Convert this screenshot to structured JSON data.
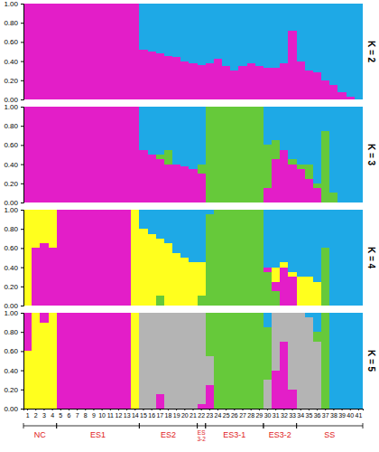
{
  "chart_data": [
    {
      "type": "bar",
      "stacked": true,
      "title": "K = 2",
      "tick_labels": "y",
      "categories": [
        "1",
        "2",
        "3",
        "4",
        "5",
        "6",
        "7",
        "8",
        "9",
        "10",
        "11",
        "12",
        "13",
        "14",
        "15",
        "16",
        "17",
        "18",
        "19",
        "20",
        "21",
        "22",
        "23",
        "24",
        "25",
        "26",
        "27",
        "28",
        "29",
        "30",
        "31",
        "32",
        "33",
        "34",
        "35",
        "36",
        "37",
        "38",
        "39",
        "40",
        "41"
      ],
      "ylim": [
        0,
        1
      ],
      "yticks": [
        {
          "value": 0,
          "label": "0.00"
        },
        {
          "value": 0.2,
          "label": "0.20"
        },
        {
          "value": 0.4,
          "label": "0.40"
        },
        {
          "value": 0.6,
          "label": "0.60"
        },
        {
          "value": 0.8,
          "label": "0.80"
        },
        {
          "value": 1,
          "label": "1.00"
        }
      ],
      "series": [
        {
          "color": "#e31ec8",
          "values": [
            1,
            1,
            1,
            1,
            1,
            1,
            1,
            1,
            1,
            1,
            1,
            1,
            1,
            1,
            0.52,
            0.5,
            0.48,
            0.45,
            0.44,
            0.4,
            0.38,
            0.36,
            0.38,
            0.42,
            0.35,
            0.3,
            0.35,
            0.38,
            0.35,
            0.33,
            0.33,
            0.38,
            0.72,
            0.4,
            0.3,
            0.28,
            0.2,
            0.15,
            0.08,
            0.03,
            0
          ]
        },
        {
          "color": "#1ea9e6",
          "values": [
            0,
            0,
            0,
            0,
            0,
            0,
            0,
            0,
            0,
            0,
            0,
            0,
            0,
            0,
            0.48,
            0.5,
            0.52,
            0.55,
            0.56,
            0.6,
            0.62,
            0.64,
            0.62,
            0.58,
            0.65,
            0.7,
            0.65,
            0.62,
            0.65,
            0.67,
            0.67,
            0.62,
            0.28,
            0.6,
            0.7,
            0.72,
            0.8,
            0.85,
            0.92,
            0.97,
            1
          ]
        }
      ]
    },
    {
      "type": "bar",
      "stacked": true,
      "title": "K = 3",
      "tick_labels": "y",
      "categories": [
        "1",
        "2",
        "3",
        "4",
        "5",
        "6",
        "7",
        "8",
        "9",
        "10",
        "11",
        "12",
        "13",
        "14",
        "15",
        "16",
        "17",
        "18",
        "19",
        "20",
        "21",
        "22",
        "23",
        "24",
        "25",
        "26",
        "27",
        "28",
        "29",
        "30",
        "31",
        "32",
        "33",
        "34",
        "35",
        "36",
        "37",
        "38",
        "39",
        "40",
        "41"
      ],
      "ylim": [
        0,
        1
      ],
      "yticks": [
        {
          "value": 0,
          "label": "0.00"
        },
        {
          "value": 0.2,
          "label": "0.20"
        },
        {
          "value": 0.4,
          "label": "0.40"
        },
        {
          "value": 0.6,
          "label": "0.60"
        },
        {
          "value": 0.8,
          "label": "0.80"
        },
        {
          "value": 1,
          "label": "1.00"
        }
      ],
      "series": [
        {
          "color": "#e31ec8",
          "values": [
            1,
            1,
            1,
            1,
            1,
            1,
            1,
            1,
            1,
            1,
            1,
            1,
            1,
            1,
            0.55,
            0.5,
            0.45,
            0.4,
            0.4,
            0.38,
            0.35,
            0.3,
            0,
            0,
            0,
            0,
            0,
            0,
            0,
            0.15,
            0.45,
            0.55,
            0.4,
            0.35,
            0.25,
            0.15,
            0,
            0,
            0,
            0,
            0
          ]
        },
        {
          "color": "#66c93a",
          "values": [
            0,
            0,
            0,
            0,
            0,
            0,
            0,
            0,
            0,
            0,
            0,
            0,
            0,
            0,
            0,
            0,
            0.05,
            0.15,
            0,
            0,
            0,
            0.1,
            1,
            1,
            1,
            1,
            1,
            1,
            1,
            0.45,
            0.2,
            0,
            0.05,
            0.05,
            0.15,
            0.05,
            0.75,
            0.1,
            0,
            0,
            0
          ]
        },
        {
          "color": "#1ea9e6",
          "values": [
            0,
            0,
            0,
            0,
            0,
            0,
            0,
            0,
            0,
            0,
            0,
            0,
            0,
            0,
            0.45,
            0.5,
            0.5,
            0.45,
            0.6,
            0.62,
            0.65,
            0.6,
            0,
            0,
            0,
            0,
            0,
            0,
            0,
            0.4,
            0.35,
            0.45,
            0.55,
            0.6,
            0.6,
            0.8,
            0.25,
            0.9,
            1,
            1,
            1
          ]
        }
      ]
    },
    {
      "type": "bar",
      "stacked": true,
      "title": "K = 4",
      "tick_labels": "y",
      "categories": [
        "1",
        "2",
        "3",
        "4",
        "5",
        "6",
        "7",
        "8",
        "9",
        "10",
        "11",
        "12",
        "13",
        "14",
        "15",
        "16",
        "17",
        "18",
        "19",
        "20",
        "21",
        "22",
        "23",
        "24",
        "25",
        "26",
        "27",
        "28",
        "29",
        "30",
        "31",
        "32",
        "33",
        "34",
        "35",
        "36",
        "37",
        "38",
        "39",
        "40",
        "41"
      ],
      "ylim": [
        0,
        1
      ],
      "yticks": [
        {
          "value": 0,
          "label": "0.00"
        },
        {
          "value": 0.2,
          "label": "0.20"
        },
        {
          "value": 0.4,
          "label": "0.40"
        },
        {
          "value": 0.6,
          "label": "0.60"
        },
        {
          "value": 0.8,
          "label": "0.80"
        },
        {
          "value": 1,
          "label": "1.00"
        }
      ],
      "series": [
        {
          "color": "#66c93a",
          "values": [
            0,
            0,
            0,
            0,
            0,
            0,
            0,
            0,
            0,
            0,
            0,
            0,
            0,
            0,
            0,
            0,
            0.1,
            0,
            0,
            0,
            0,
            0.1,
            0.95,
            1,
            1,
            1,
            1,
            1,
            1,
            0.35,
            0.15,
            0,
            0,
            0,
            0,
            0,
            0.6,
            0,
            0,
            0,
            0
          ]
        },
        {
          "color": "#e31ec8",
          "values": [
            0,
            0.6,
            0.65,
            0.6,
            1,
            1,
            1,
            1,
            1,
            1,
            1,
            1,
            1,
            0,
            0,
            0,
            0,
            0,
            0,
            0,
            0,
            0,
            0,
            0,
            0,
            0,
            0,
            0,
            0,
            0.05,
            0.1,
            0.4,
            0.3,
            0,
            0,
            0,
            0,
            0,
            0,
            0,
            0
          ]
        },
        {
          "color": "#ffff1e",
          "values": [
            1,
            0.4,
            0.35,
            0.4,
            0,
            0,
            0,
            0,
            0,
            0,
            0,
            0,
            0,
            1,
            0.8,
            0.75,
            0.6,
            0.65,
            0.55,
            0.5,
            0.45,
            0.35,
            0,
            0,
            0,
            0,
            0,
            0,
            0,
            0,
            0.15,
            0.05,
            0.05,
            0.3,
            0.3,
            0.25,
            0,
            0,
            0,
            0,
            0
          ]
        },
        {
          "color": "#1ea9e6",
          "values": [
            0,
            0,
            0,
            0,
            0,
            0,
            0,
            0,
            0,
            0,
            0,
            0,
            0,
            0,
            0.2,
            0.25,
            0.3,
            0.35,
            0.45,
            0.5,
            0.55,
            0.55,
            0.05,
            0,
            0,
            0,
            0,
            0,
            0,
            0.6,
            0.6,
            0.55,
            0.65,
            0.7,
            0.7,
            0.75,
            0.4,
            1,
            1,
            1,
            1
          ]
        }
      ]
    },
    {
      "type": "bar",
      "stacked": true,
      "title": "K = 5",
      "categories": [
        "1",
        "2",
        "3",
        "4",
        "5",
        "6",
        "7",
        "8",
        "9",
        "10",
        "11",
        "12",
        "13",
        "14",
        "15",
        "16",
        "17",
        "18",
        "19",
        "20",
        "21",
        "22",
        "23",
        "24",
        "25",
        "26",
        "27",
        "28",
        "29",
        "30",
        "31",
        "32",
        "33",
        "34",
        "35",
        "36",
        "37",
        "38",
        "39",
        "40",
        "41"
      ],
      "ylim": [
        0,
        1
      ],
      "yticks": [
        {
          "value": 0,
          "label": "0.00"
        },
        {
          "value": 0.2,
          "label": "0.20"
        },
        {
          "value": 0.4,
          "label": "0.40"
        },
        {
          "value": 0.6,
          "label": "0.60"
        },
        {
          "value": 0.8,
          "label": "0.80"
        },
        {
          "value": 1,
          "label": "1.00"
        }
      ],
      "series": [
        {
          "color": "#ffff1e",
          "values": [
            0.6,
            1,
            0.9,
            1,
            0,
            0,
            0,
            0,
            0,
            0,
            0,
            0,
            0,
            1,
            0,
            0,
            0,
            0,
            0,
            0,
            0,
            0,
            0,
            0,
            0,
            0,
            0,
            0,
            0,
            0,
            0,
            0,
            0,
            0,
            0,
            0,
            0,
            0,
            0,
            0,
            0
          ]
        },
        {
          "color": "#e31ec8",
          "values": [
            0.4,
            0,
            0.1,
            0,
            1,
            1,
            1,
            1,
            1,
            1,
            1,
            1,
            1,
            0,
            0,
            0,
            0.15,
            0,
            0,
            0,
            0,
            0.05,
            0.25,
            0,
            0,
            0,
            0,
            0,
            0,
            0,
            0.4,
            0.7,
            0.2,
            0,
            0,
            0,
            0,
            0,
            0,
            0,
            0
          ]
        },
        {
          "color": "#b4b4b4",
          "values": [
            0,
            0,
            0,
            0,
            0,
            0,
            0,
            0,
            0,
            0,
            0,
            0,
            0,
            0,
            1,
            1,
            0.85,
            1,
            1,
            1,
            1,
            0.95,
            0.3,
            0,
            0,
            0,
            0,
            0,
            0,
            0.3,
            0.6,
            0.3,
            0.8,
            1,
            0.95,
            0.7,
            0,
            0,
            0,
            0,
            0
          ]
        },
        {
          "color": "#66c93a",
          "values": [
            0,
            0,
            0,
            0,
            0,
            0,
            0,
            0,
            0,
            0,
            0,
            0,
            0,
            0,
            0,
            0,
            0,
            0,
            0,
            0,
            0,
            0,
            0.45,
            1,
            1,
            1,
            1,
            1,
            1,
            0.55,
            0,
            0,
            0,
            0,
            0,
            0.1,
            1,
            0,
            0,
            0,
            0
          ]
        },
        {
          "color": "#1ea9e6",
          "values": [
            0,
            0,
            0,
            0,
            0,
            0,
            0,
            0,
            0,
            0,
            0,
            0,
            0,
            0,
            0,
            0,
            0,
            0,
            0,
            0,
            0,
            0,
            0,
            0,
            0,
            0,
            0,
            0,
            0,
            0.15,
            0,
            0,
            0,
            0,
            0.05,
            0.2,
            0,
            1,
            1,
            1,
            1
          ]
        }
      ],
      "groups": [
        {
          "label": "NC",
          "first": 1,
          "last": 4
        },
        {
          "label": "ES1",
          "first": 5,
          "last": 14
        },
        {
          "label": "ES2",
          "first": 15,
          "last": 21
        },
        {
          "label": "ES3-2",
          "first": 22,
          "last": 22
        },
        {
          "label": "ES3-1",
          "first": 23,
          "last": 29
        },
        {
          "label": "ES3-2",
          "first": 30,
          "last": 33
        },
        {
          "label": "SS",
          "first": 34,
          "last": 41
        }
      ]
    }
  ]
}
